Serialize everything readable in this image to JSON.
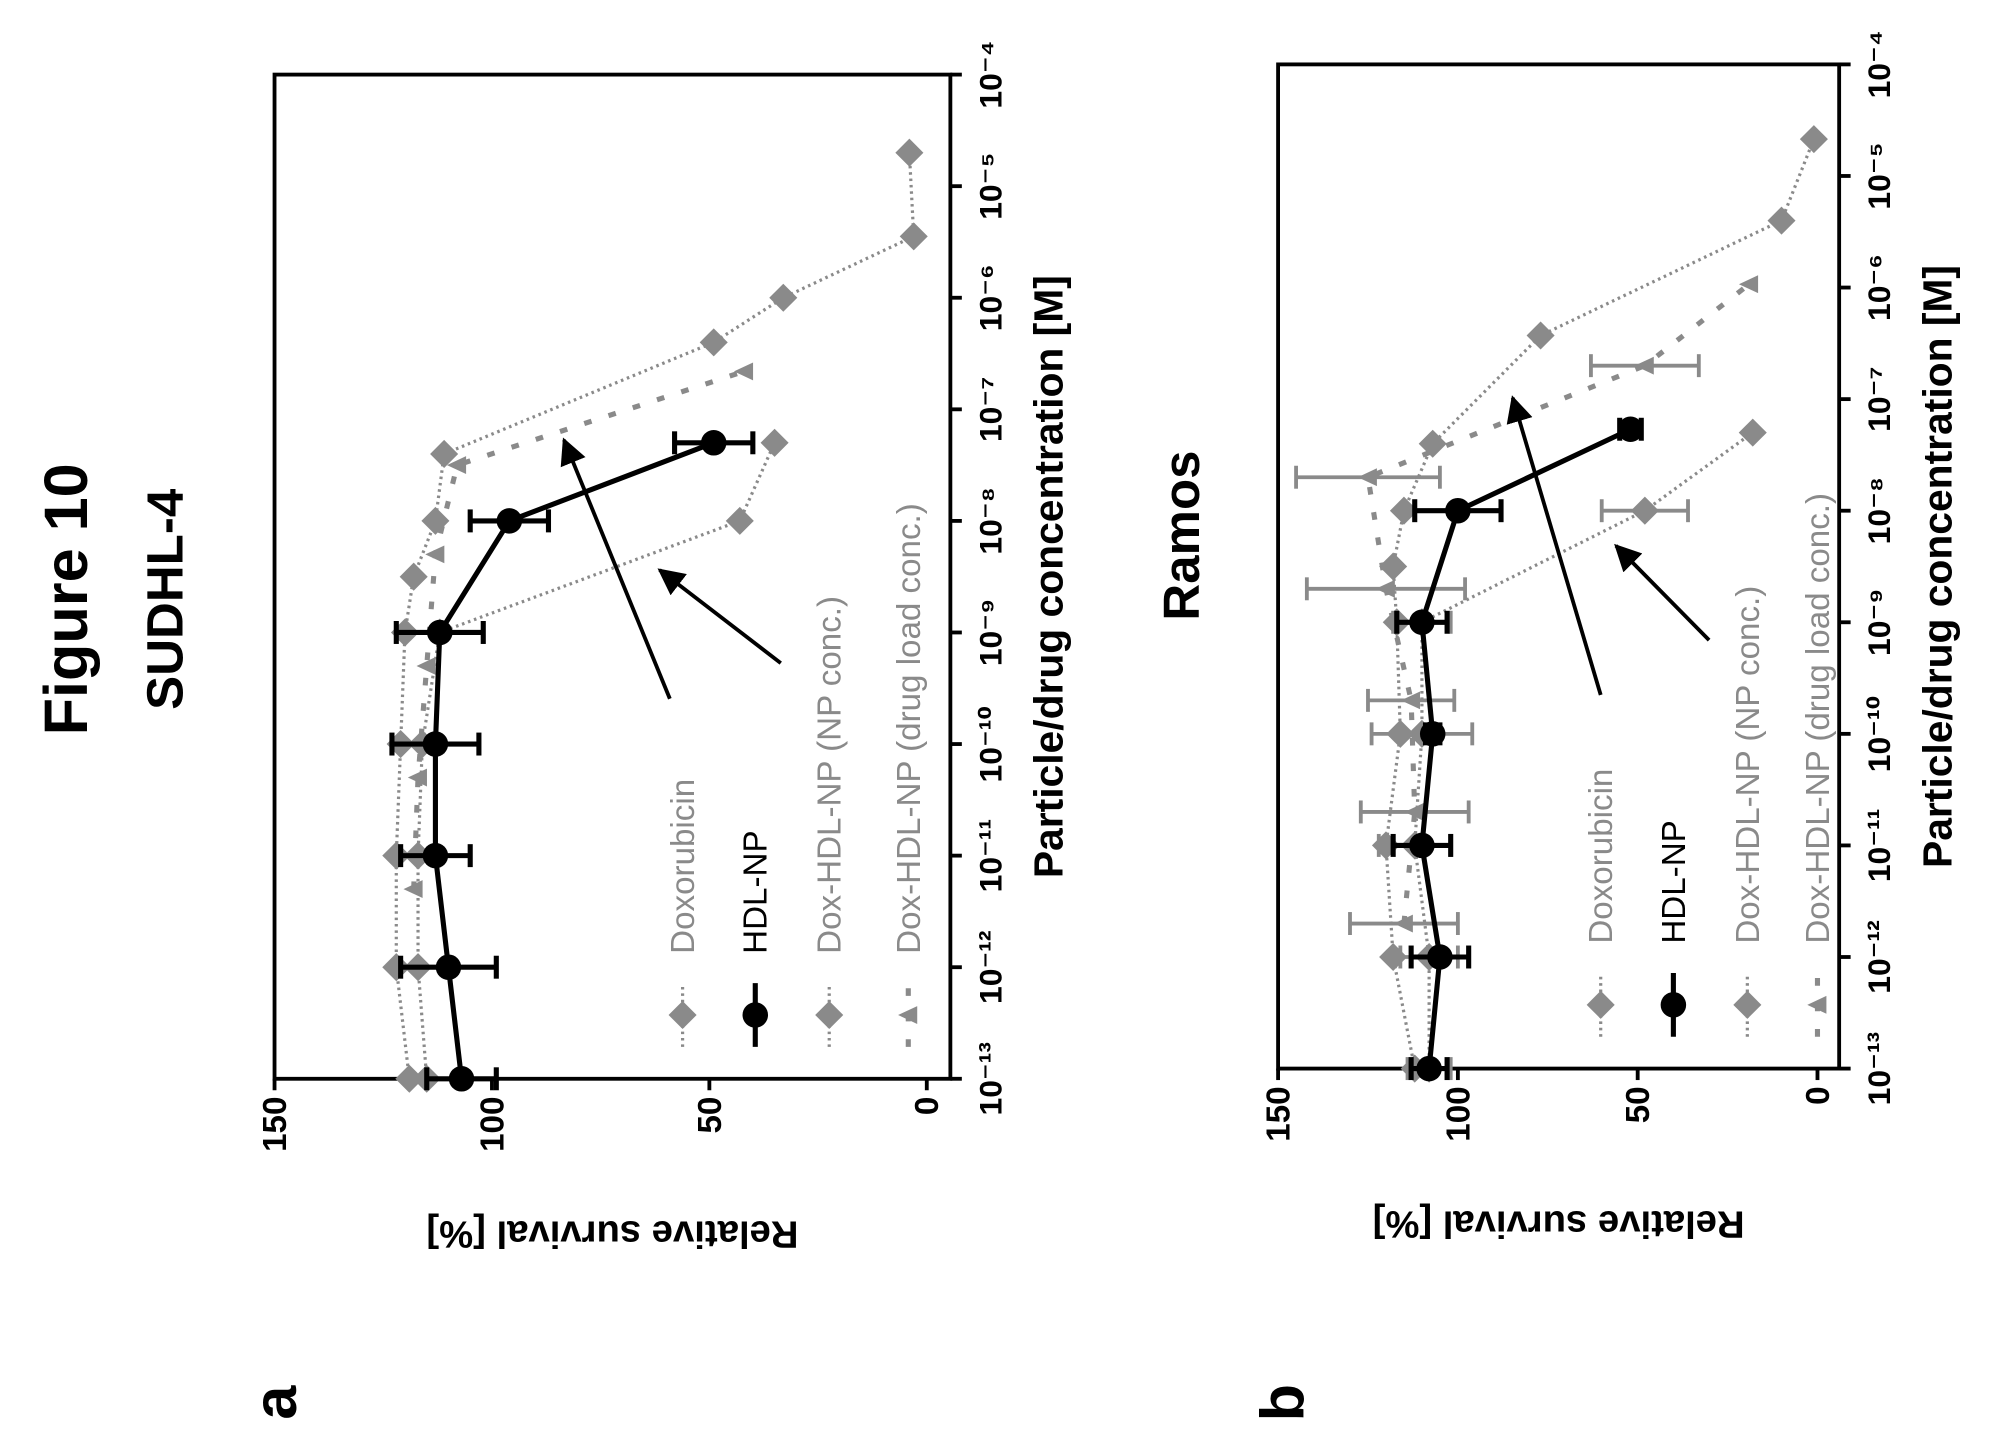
{
  "figure_title": "Figure 10",
  "panels": [
    {
      "letter": "a",
      "title": "SUDHL-4"
    },
    {
      "letter": "b",
      "title": "Ramos"
    }
  ],
  "colors": {
    "gray_series": "#8a8a8a",
    "black_series": "#000000"
  },
  "chart_data": [
    {
      "type": "line",
      "title": "SUDHL-4",
      "xlabel": "Particle/drug concentration [M]",
      "ylabel": "Relative survival [%]",
      "xscale": "log",
      "xlim_log10": [
        -13,
        -4
      ],
      "ylim": [
        -5,
        150
      ],
      "xticks": [
        -13,
        -12,
        -11,
        -10,
        -9,
        -8,
        -7,
        -6,
        -5,
        -4
      ],
      "xtick_labels": [
        "10⁻¹³",
        "10⁻¹²",
        "10⁻¹¹",
        "10⁻¹⁰",
        "10⁻⁹",
        "10⁻⁸",
        "10⁻⁷",
        "10⁻⁶",
        "10⁻⁵",
        "10⁻⁴"
      ],
      "yticks": [
        0,
        50,
        100,
        150
      ],
      "ytick_labels": [
        "0",
        "50",
        "100",
        "150"
      ],
      "legend_position": "bottom-right",
      "series": [
        {
          "name": "Doxorubicin",
          "style": "gray-dotted-diamond",
          "log10_x": [
            -13,
            -12,
            -11,
            -10,
            -9,
            -8.5,
            -8,
            -7.4,
            -6.4,
            -6,
            -5.45,
            -4.7
          ],
          "y": [
            119,
            122,
            122,
            121,
            120,
            118,
            113,
            111,
            49,
            33,
            3,
            4
          ],
          "err": []
        },
        {
          "name": "HDL-NP",
          "style": "black-solid-circle",
          "log10_x": [
            -13,
            -12,
            -11,
            -10,
            -9,
            -8,
            -7.3
          ],
          "y": [
            107,
            110,
            113,
            113,
            112,
            96,
            49
          ],
          "err": [
            8,
            11,
            8,
            10,
            10,
            9,
            9
          ]
        },
        {
          "name": "Dox-HDL-NP (NP conc.)",
          "style": "gray-dotted-diamond",
          "log10_x": [
            -13,
            -12,
            -11,
            -10,
            -9,
            -8,
            -7.3
          ],
          "y": [
            115,
            117,
            117,
            116,
            112,
            43,
            35
          ],
          "err": []
        },
        {
          "name": "Dox-HDL-NP (drug load conc.)",
          "style": "gray-dashed-triangle",
          "log10_x": [
            -11.3,
            -10.3,
            -9.3,
            -8.3,
            -7.5,
            -6.66
          ],
          "y": [
            118,
            117,
            115,
            113,
            108,
            42
          ],
          "err": []
        }
      ]
    },
    {
      "type": "line",
      "title": "Ramos",
      "xlabel": "Particle/drug concentration [M]",
      "ylabel": "Relative survival [%]",
      "xscale": "log",
      "xlim_log10": [
        -13,
        -4
      ],
      "ylim": [
        -5,
        150
      ],
      "xticks": [
        -13,
        -12,
        -11,
        -10,
        -9,
        -8,
        -7,
        -6,
        -5,
        -4
      ],
      "xtick_labels": [
        "10⁻¹³",
        "10⁻¹²",
        "10⁻¹¹",
        "10⁻¹⁰",
        "10⁻⁹",
        "10⁻⁸",
        "10⁻⁷",
        "10⁻⁶",
        "10⁻⁵",
        "10⁻⁴"
      ],
      "yticks": [
        0,
        50,
        100,
        150
      ],
      "ytick_labels": [
        "0",
        "50",
        "100",
        "150"
      ],
      "legend_position": "bottom-right",
      "series": [
        {
          "name": "Doxorubicin",
          "style": "gray-dotted-diamond",
          "log10_x": [
            -13,
            -12,
            -11,
            -10,
            -9,
            -8.5,
            -8,
            -7.4,
            -6.43,
            -5.4,
            -4.67
          ],
          "y": [
            112,
            118,
            120,
            116,
            117,
            118,
            115,
            107,
            77,
            10,
            1
          ],
          "err": []
        },
        {
          "name": "HDL-NP",
          "style": "black-solid-circle",
          "log10_x": [
            -13,
            -12,
            -11,
            -10,
            -9,
            -8,
            -7.27
          ],
          "y": [
            108,
            105,
            110,
            107,
            110,
            100,
            52
          ],
          "err": [
            5,
            8,
            8,
            2,
            7,
            12,
            3
          ]
        },
        {
          "name": "Dox-HDL-NP (NP conc.)",
          "style": "gray-dotted-diamond",
          "log10_x": [
            -13,
            -12,
            -11,
            -10,
            -9,
            -8,
            -7.3
          ],
          "y": [
            108,
            108,
            112,
            110,
            110,
            48,
            18
          ],
          "err": [
            6,
            8,
            10,
            14,
            8,
            12,
            0
          ]
        },
        {
          "name": "Dox-HDL-NP (drug load conc.)",
          "style": "gray-dashed-triangle",
          "log10_x": [
            -11.7,
            -10.7,
            -9.7,
            -8.7,
            -7.7,
            -6.7,
            -5.97
          ],
          "y": [
            115,
            112,
            113,
            120,
            125,
            48,
            19
          ],
          "err": [
            15,
            15,
            12,
            22,
            20,
            15,
            0
          ]
        }
      ]
    }
  ]
}
